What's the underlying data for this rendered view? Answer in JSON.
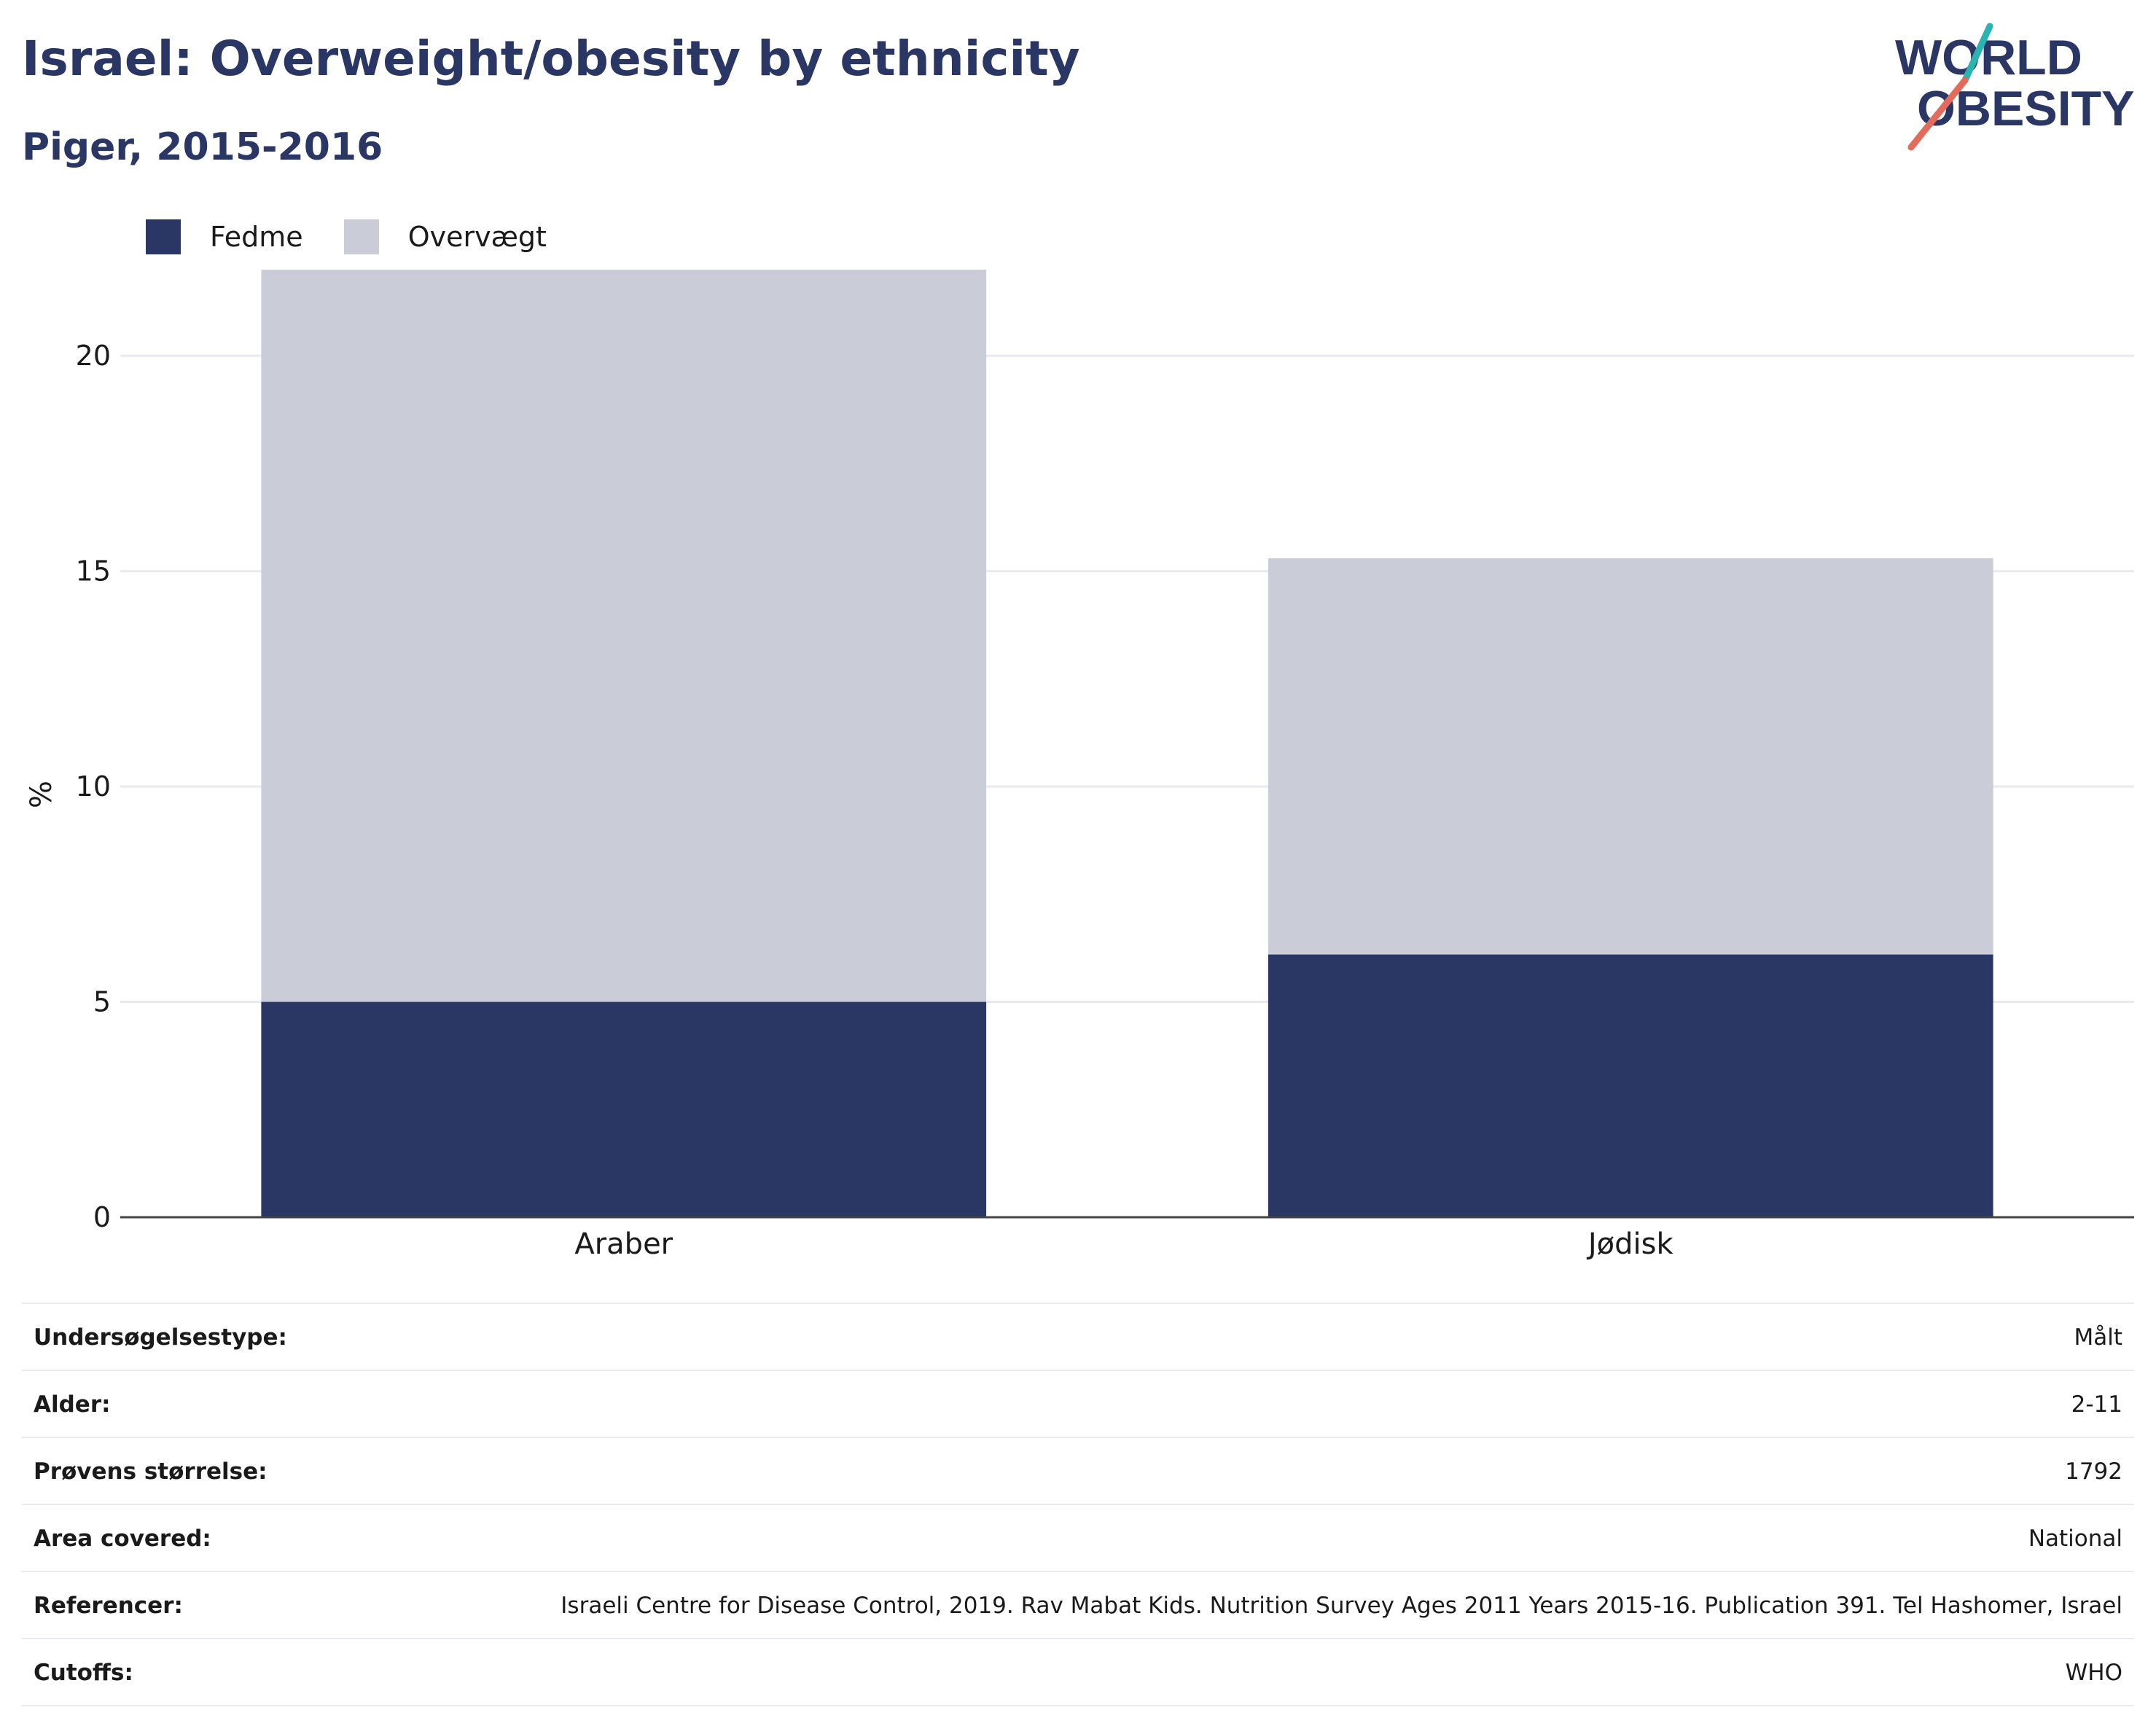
{
  "header": {
    "title": "Israel: Overweight/obesity by ethnicity",
    "subtitle": "Piger, 2015-2016"
  },
  "logo": {
    "line1": "WORLD",
    "line2": "OBESITY",
    "colors": {
      "text": "#2a3664",
      "slash_teal": "#2bb3b1",
      "slash_red": "#e36b5c"
    }
  },
  "legend": {
    "items": [
      {
        "label": "Fedme",
        "color": "#2a3664"
      },
      {
        "label": "Overvægt",
        "color": "#cacdd8"
      }
    ]
  },
  "chart_data": {
    "type": "bar",
    "stacked": true,
    "categories": [
      "Araber",
      "Jødisk"
    ],
    "series": [
      {
        "name": "Fedme",
        "values": [
          5.0,
          6.1
        ],
        "color": "#2a3664"
      },
      {
        "name": "Overvægt",
        "values": [
          17.0,
          9.2
        ],
        "color": "#cacdd8"
      }
    ],
    "ylabel": "%",
    "ylim": [
      0,
      22
    ],
    "yticks": [
      0,
      5,
      10,
      15,
      20
    ],
    "grid": true,
    "legend_position": "top-left"
  },
  "info": {
    "rows": [
      {
        "label": "Undersøgelsestype:",
        "value": "Målt"
      },
      {
        "label": "Alder:",
        "value": "2-11"
      },
      {
        "label": "Prøvens størrelse:",
        "value": "1792"
      },
      {
        "label": "Area covered:",
        "value": "National"
      },
      {
        "label": "Referencer:",
        "value": "Israeli Centre for Disease Control, 2019. Rav Mabat Kids. Nutrition Survey Ages 2011 Years 2015-16. Publication 391. Tel Hashomer, Israel"
      },
      {
        "label": "Cutoffs:",
        "value": "WHO"
      }
    ]
  }
}
